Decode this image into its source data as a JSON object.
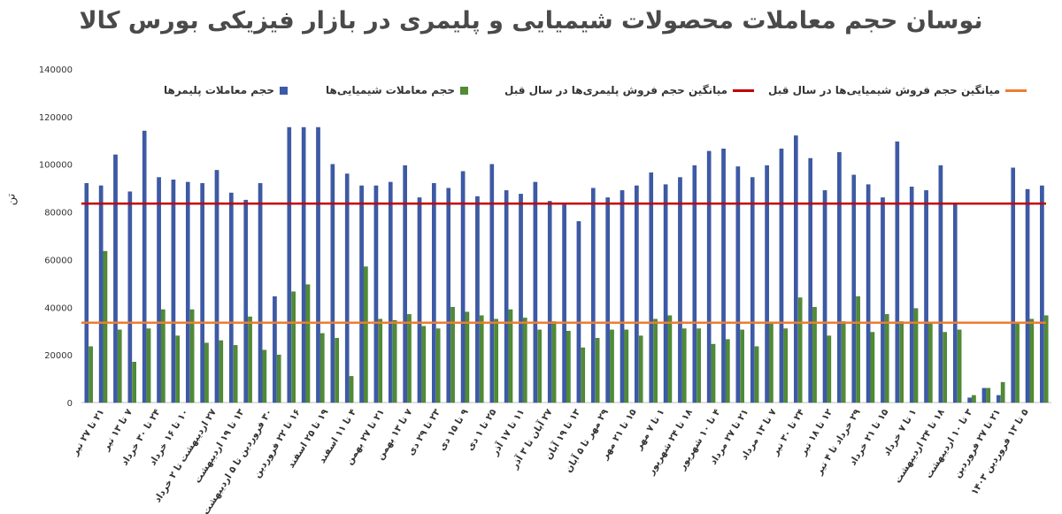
{
  "chart_data": {
    "type": "bar",
    "title": "نوسان حجم معاملات محصولات شیمیایی و پلیمری در بازار فیزیکی بورس کالا",
    "ylabel": "تن",
    "ylim": [
      0,
      140000
    ],
    "yticks": [
      0,
      20000,
      40000,
      60000,
      80000,
      100000,
      120000,
      140000
    ],
    "ytick_labels": [
      "0",
      "20000",
      "40000",
      "60000",
      "80000",
      "100000",
      "120000",
      "140000"
    ],
    "grid": false,
    "legend_position": "top",
    "categories": [
      "۵ تا ۱۳ فروردین ۱۴۰۳",
      "۲۱ تا ۲۷ فروردین",
      "۳ تا ۱۰ اردیبهشت",
      "۱۸ تا ۲۴ اردیبهشت",
      "۱ تا ۷ خرداد",
      "۱۵ تا ۲۱ خرداد",
      "۲۹ خرداد تا ۴ تیر",
      "۱۲ تا ۱۸ تیر",
      "۲۴ تا ۳۰ تیر",
      "۷ تا ۱۳ مرداد",
      "۲۱ تا ۲۷ مرداد",
      "۴ تا ۱۰ شهریور",
      "۱۸ تا ۲۴ شهریور",
      "۱ تا ۷ مهر",
      "۱۵ تا ۲۱ مهر",
      "۲۹ مهر تا ۵ آبان",
      "۱۳ تا ۱۹ آبان",
      "۲۷ آبان تا ۳ آذر",
      "۱۱ تا ۱۷ آذر",
      "۲۵ تا ۱ دی",
      "۹ تا ۱۵ دی",
      "۲۳ تا ۲۹ دی",
      "۷ تا ۱۳ بهمن",
      "۲۱ تا ۲۷ بهمن",
      "۴ تا ۱۱ اسفند",
      "۱۹ تا ۲۵ اسفند",
      "۱۶ تا ۲۲ فروردین",
      "۳۰ فروردین تا ۵ اردیبهشت",
      "۱۳ تا ۱۹ اردیبهشت",
      "۲۷ اردیبهشت تا ۲ خرداد",
      "۱۰ تا ۱۶ خرداد",
      "۲۴ تا ۳۰ خرداد",
      "۷ تا ۱۳ تیر",
      "۲۱ تا ۲۷ تیر"
    ],
    "x_groups": [
      [
        92000,
        23500
      ],
      [
        91000,
        63500
      ],
      [
        104000,
        30500
      ],
      [
        88500,
        17000
      ],
      [
        114000,
        31000
      ],
      [
        94500,
        39000
      ],
      [
        93500,
        28000
      ],
      [
        92500,
        39000
      ],
      [
        92000,
        25000
      ],
      [
        97500,
        26000
      ],
      [
        88000,
        24000
      ],
      [
        85000,
        36000
      ],
      [
        92000,
        22000
      ],
      [
        44500,
        20000
      ],
      [
        115500,
        46500
      ],
      [
        115500,
        49500
      ],
      [
        115500,
        29000
      ],
      [
        100000,
        27000
      ],
      [
        96000,
        11000
      ],
      [
        91000,
        57000
      ],
      [
        91000,
        35000
      ],
      [
        92500,
        34500
      ],
      [
        99500,
        37000
      ],
      [
        86000,
        32000
      ],
      [
        92000,
        31000
      ],
      [
        90000,
        40000
      ],
      [
        97000,
        38000
      ],
      [
        86500,
        36500
      ],
      [
        100000,
        35000
      ],
      [
        89000,
        39000
      ],
      [
        87500,
        35500
      ],
      [
        92500,
        30500
      ],
      [
        84500,
        34000
      ],
      [
        83000,
        30000
      ],
      [
        76000,
        23000
      ],
      [
        90000,
        27000
      ],
      [
        86000,
        30500
      ],
      [
        89000,
        30500
      ],
      [
        91000,
        28000
      ],
      [
        96500,
        35000
      ],
      [
        91500,
        36500
      ],
      [
        94500,
        31000
      ],
      [
        99500,
        31000
      ],
      [
        105500,
        24500
      ],
      [
        106500,
        26500
      ],
      [
        99000,
        30500
      ],
      [
        94500,
        23500
      ],
      [
        99500,
        33500
      ],
      [
        106500,
        31000
      ],
      [
        112000,
        44000
      ],
      [
        102500,
        40000
      ],
      [
        89000,
        28000
      ],
      [
        105000,
        34000
      ],
      [
        95500,
        44500
      ],
      [
        91500,
        29500
      ],
      [
        86000,
        37000
      ],
      [
        109500,
        34000
      ],
      [
        90500,
        39500
      ],
      [
        89000,
        33500
      ],
      [
        99500,
        29500
      ],
      [
        83500,
        30500
      ],
      [
        2000,
        3000
      ],
      [
        6000,
        6000
      ],
      [
        3000,
        8500
      ],
      [
        98500,
        33000
      ],
      [
        89500,
        35000
      ],
      [
        91000,
        36500
      ]
    ],
    "series": [
      {
        "name": "حجم معاملات پلیمرها",
        "color": "#3c5aa8"
      },
      {
        "name": "حجم معاملات شیمیایی‌ها",
        "color": "#4f8c34"
      },
      {
        "name": "میانگین حجم فروش پلیمری‌ها در سال قبل",
        "color": "#c00000",
        "value": 83500
      },
      {
        "name": "میانگین حجم فروش شیمیایی‌ها در سال قبل",
        "color": "#ed7d31",
        "value": 33500
      }
    ]
  }
}
